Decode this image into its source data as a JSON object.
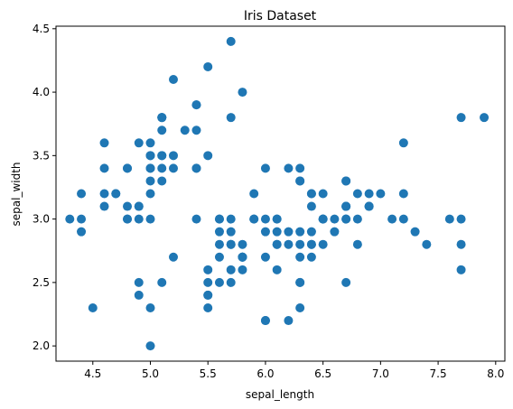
{
  "chart_data": {
    "type": "scatter",
    "title": "Iris Dataset",
    "xlabel": "sepal_length",
    "ylabel": "sepal_width",
    "xlim": [
      4.18,
      8.08
    ],
    "ylim": [
      1.88,
      4.52
    ],
    "x_ticks": [
      4.5,
      5.0,
      5.5,
      6.0,
      6.5,
      7.0,
      7.5,
      8.0
    ],
    "x_tick_labels": [
      "4.5",
      "5.0",
      "5.5",
      "6.0",
      "6.5",
      "7.0",
      "7.5",
      "8.0"
    ],
    "y_ticks": [
      2.0,
      2.5,
      3.0,
      3.5,
      4.0,
      4.5
    ],
    "y_tick_labels": [
      "2.0",
      "2.5",
      "3.0",
      "3.5",
      "4.0",
      "4.5"
    ],
    "grid": false,
    "marker_color": "#1f77b4",
    "points": [
      [
        5.1,
        3.5
      ],
      [
        4.9,
        3.0
      ],
      [
        4.7,
        3.2
      ],
      [
        4.6,
        3.1
      ],
      [
        5.0,
        3.6
      ],
      [
        5.4,
        3.9
      ],
      [
        4.6,
        3.4
      ],
      [
        5.0,
        3.4
      ],
      [
        4.4,
        2.9
      ],
      [
        4.9,
        3.1
      ],
      [
        5.4,
        3.7
      ],
      [
        4.8,
        3.4
      ],
      [
        4.8,
        3.0
      ],
      [
        4.3,
        3.0
      ],
      [
        5.8,
        4.0
      ],
      [
        5.7,
        4.4
      ],
      [
        5.4,
        3.9
      ],
      [
        5.1,
        3.5
      ],
      [
        5.7,
        3.8
      ],
      [
        5.1,
        3.8
      ],
      [
        5.4,
        3.4
      ],
      [
        5.1,
        3.7
      ],
      [
        4.6,
        3.6
      ],
      [
        5.1,
        3.3
      ],
      [
        4.8,
        3.4
      ],
      [
        5.0,
        3.0
      ],
      [
        5.0,
        3.4
      ],
      [
        5.2,
        3.5
      ],
      [
        5.2,
        3.4
      ],
      [
        4.7,
        3.2
      ],
      [
        4.8,
        3.1
      ],
      [
        5.4,
        3.4
      ],
      [
        5.2,
        4.1
      ],
      [
        5.5,
        4.2
      ],
      [
        4.9,
        3.1
      ],
      [
        5.0,
        3.2
      ],
      [
        5.5,
        3.5
      ],
      [
        4.9,
        3.6
      ],
      [
        4.4,
        3.0
      ],
      [
        5.1,
        3.4
      ],
      [
        5.0,
        3.5
      ],
      [
        4.5,
        2.3
      ],
      [
        4.4,
        3.2
      ],
      [
        5.0,
        3.5
      ],
      [
        5.1,
        3.8
      ],
      [
        4.8,
        3.0
      ],
      [
        5.1,
        3.8
      ],
      [
        4.6,
        3.2
      ],
      [
        5.3,
        3.7
      ],
      [
        5.0,
        3.3
      ],
      [
        7.0,
        3.2
      ],
      [
        6.4,
        3.2
      ],
      [
        6.9,
        3.1
      ],
      [
        5.5,
        2.3
      ],
      [
        6.5,
        2.8
      ],
      [
        5.7,
        2.8
      ],
      [
        6.3,
        3.3
      ],
      [
        4.9,
        2.4
      ],
      [
        6.6,
        2.9
      ],
      [
        5.2,
        2.7
      ],
      [
        5.0,
        2.0
      ],
      [
        5.9,
        3.0
      ],
      [
        6.0,
        2.2
      ],
      [
        6.1,
        2.9
      ],
      [
        5.6,
        2.9
      ],
      [
        6.7,
        3.1
      ],
      [
        5.6,
        3.0
      ],
      [
        5.8,
        2.7
      ],
      [
        6.2,
        2.2
      ],
      [
        5.6,
        2.5
      ],
      [
        5.9,
        3.2
      ],
      [
        6.1,
        2.8
      ],
      [
        6.3,
        2.5
      ],
      [
        6.1,
        2.8
      ],
      [
        6.4,
        2.9
      ],
      [
        6.6,
        3.0
      ],
      [
        6.8,
        2.8
      ],
      [
        6.7,
        3.0
      ],
      [
        6.0,
        2.9
      ],
      [
        5.7,
        2.6
      ],
      [
        5.5,
        2.4
      ],
      [
        5.5,
        2.4
      ],
      [
        5.8,
        2.7
      ],
      [
        6.0,
        2.7
      ],
      [
        5.4,
        3.0
      ],
      [
        6.0,
        3.4
      ],
      [
        6.7,
        3.1
      ],
      [
        6.3,
        2.3
      ],
      [
        5.6,
        3.0
      ],
      [
        5.5,
        2.5
      ],
      [
        5.5,
        2.6
      ],
      [
        6.1,
        3.0
      ],
      [
        5.8,
        2.6
      ],
      [
        5.0,
        2.3
      ],
      [
        5.6,
        2.7
      ],
      [
        5.7,
        3.0
      ],
      [
        5.7,
        2.9
      ],
      [
        6.2,
        2.9
      ],
      [
        5.1,
        2.5
      ],
      [
        5.7,
        2.8
      ],
      [
        6.3,
        3.3
      ],
      [
        5.8,
        2.7
      ],
      [
        7.1,
        3.0
      ],
      [
        6.3,
        2.9
      ],
      [
        6.5,
        3.0
      ],
      [
        7.6,
        3.0
      ],
      [
        4.9,
        2.5
      ],
      [
        7.3,
        2.9
      ],
      [
        6.7,
        2.5
      ],
      [
        7.2,
        3.6
      ],
      [
        6.5,
        3.2
      ],
      [
        6.4,
        2.7
      ],
      [
        6.8,
        3.0
      ],
      [
        5.7,
        2.5
      ],
      [
        5.8,
        2.8
      ],
      [
        6.4,
        3.2
      ],
      [
        6.5,
        3.0
      ],
      [
        7.7,
        3.8
      ],
      [
        7.7,
        2.6
      ],
      [
        6.0,
        2.2
      ],
      [
        6.9,
        3.2
      ],
      [
        5.6,
        2.8
      ],
      [
        7.7,
        2.8
      ],
      [
        6.3,
        2.7
      ],
      [
        6.7,
        3.3
      ],
      [
        7.2,
        3.2
      ],
      [
        6.2,
        2.8
      ],
      [
        6.1,
        3.0
      ],
      [
        6.4,
        2.8
      ],
      [
        7.2,
        3.0
      ],
      [
        7.4,
        2.8
      ],
      [
        7.9,
        3.8
      ],
      [
        6.4,
        2.8
      ],
      [
        6.3,
        2.8
      ],
      [
        6.1,
        2.6
      ],
      [
        7.7,
        3.0
      ],
      [
        6.3,
        3.4
      ],
      [
        6.4,
        3.1
      ],
      [
        6.0,
        3.0
      ],
      [
        6.9,
        3.1
      ],
      [
        6.7,
        3.1
      ],
      [
        6.9,
        3.1
      ],
      [
        5.8,
        2.7
      ],
      [
        6.8,
        3.2
      ],
      [
        6.7,
        3.3
      ],
      [
        6.7,
        3.0
      ],
      [
        6.3,
        2.5
      ],
      [
        6.5,
        3.0
      ],
      [
        6.2,
        3.4
      ],
      [
        5.9,
        3.0
      ]
    ]
  }
}
